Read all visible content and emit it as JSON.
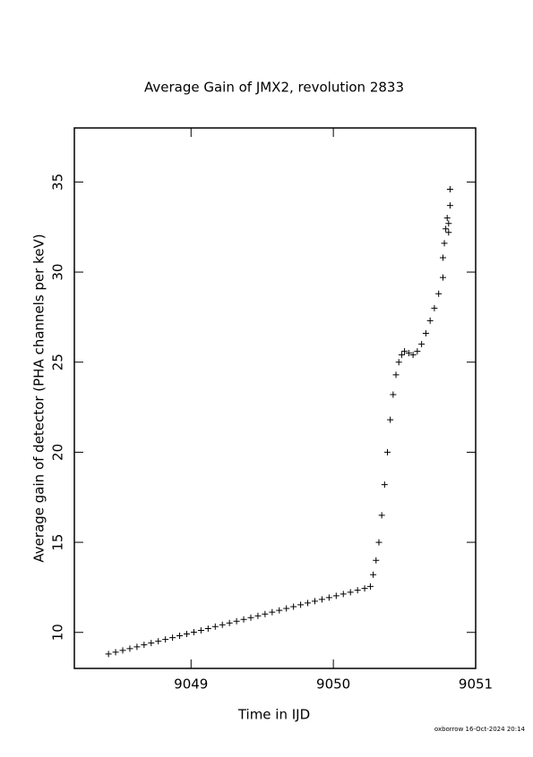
{
  "chart_data": {
    "type": "scatter",
    "title": "Average Gain of JMX2, revolution 2833",
    "x_label": "Time in IJD",
    "y_label": "Average gain of detector (PHA channels per keV)",
    "footnote": "oxborrow 16-Oct-2024 20:14",
    "marker": "+",
    "color": "#000000",
    "xlim": [
      9048.18,
      9051
    ],
    "xticks": [
      9049,
      9050,
      9051
    ],
    "ylim": [
      8,
      38
    ],
    "yticks": [
      10,
      15,
      20,
      25,
      30,
      35
    ],
    "x": [
      9048.42,
      9048.47,
      9048.52,
      9048.57,
      9048.62,
      9048.67,
      9048.72,
      9048.77,
      9048.82,
      9048.87,
      9048.92,
      9048.97,
      9049.02,
      9049.07,
      9049.12,
      9049.17,
      9049.22,
      9049.27,
      9049.32,
      9049.37,
      9049.42,
      9049.47,
      9049.52,
      9049.57,
      9049.62,
      9049.67,
      9049.72,
      9049.77,
      9049.82,
      9049.87,
      9049.92,
      9049.97,
      9050.02,
      9050.07,
      9050.12,
      9050.17,
      9050.22,
      9050.26,
      9050.28,
      9050.3,
      9050.32,
      9050.34,
      9050.36,
      9050.38,
      9050.4,
      9050.42,
      9050.44,
      9050.46,
      9050.48,
      9050.5,
      9050.53,
      9050.56,
      9050.59,
      9050.62,
      9050.65,
      9050.68,
      9050.71,
      9050.74,
      9050.77,
      9050.77,
      9050.78,
      9050.79,
      9050.8,
      9050.81,
      9050.81,
      9050.82,
      9050.82
    ],
    "values": [
      8.8,
      8.9,
      9.0,
      9.1,
      9.2,
      9.31,
      9.41,
      9.51,
      9.61,
      9.71,
      9.81,
      9.91,
      10.01,
      10.11,
      10.21,
      10.32,
      10.42,
      10.52,
      10.62,
      10.72,
      10.82,
      10.92,
      11.02,
      11.12,
      11.22,
      11.33,
      11.43,
      11.53,
      11.63,
      11.73,
      11.83,
      11.93,
      12.03,
      12.13,
      12.23,
      12.34,
      12.44,
      12.55,
      13.2,
      14.0,
      15.0,
      16.5,
      18.2,
      20.0,
      21.8,
      23.2,
      24.3,
      25.0,
      25.4,
      25.6,
      25.5,
      25.4,
      25.6,
      26.0,
      26.6,
      27.3,
      28.0,
      28.8,
      29.7,
      30.8,
      31.6,
      32.4,
      33.0,
      32.7,
      32.2,
      33.7,
      34.6
    ]
  }
}
